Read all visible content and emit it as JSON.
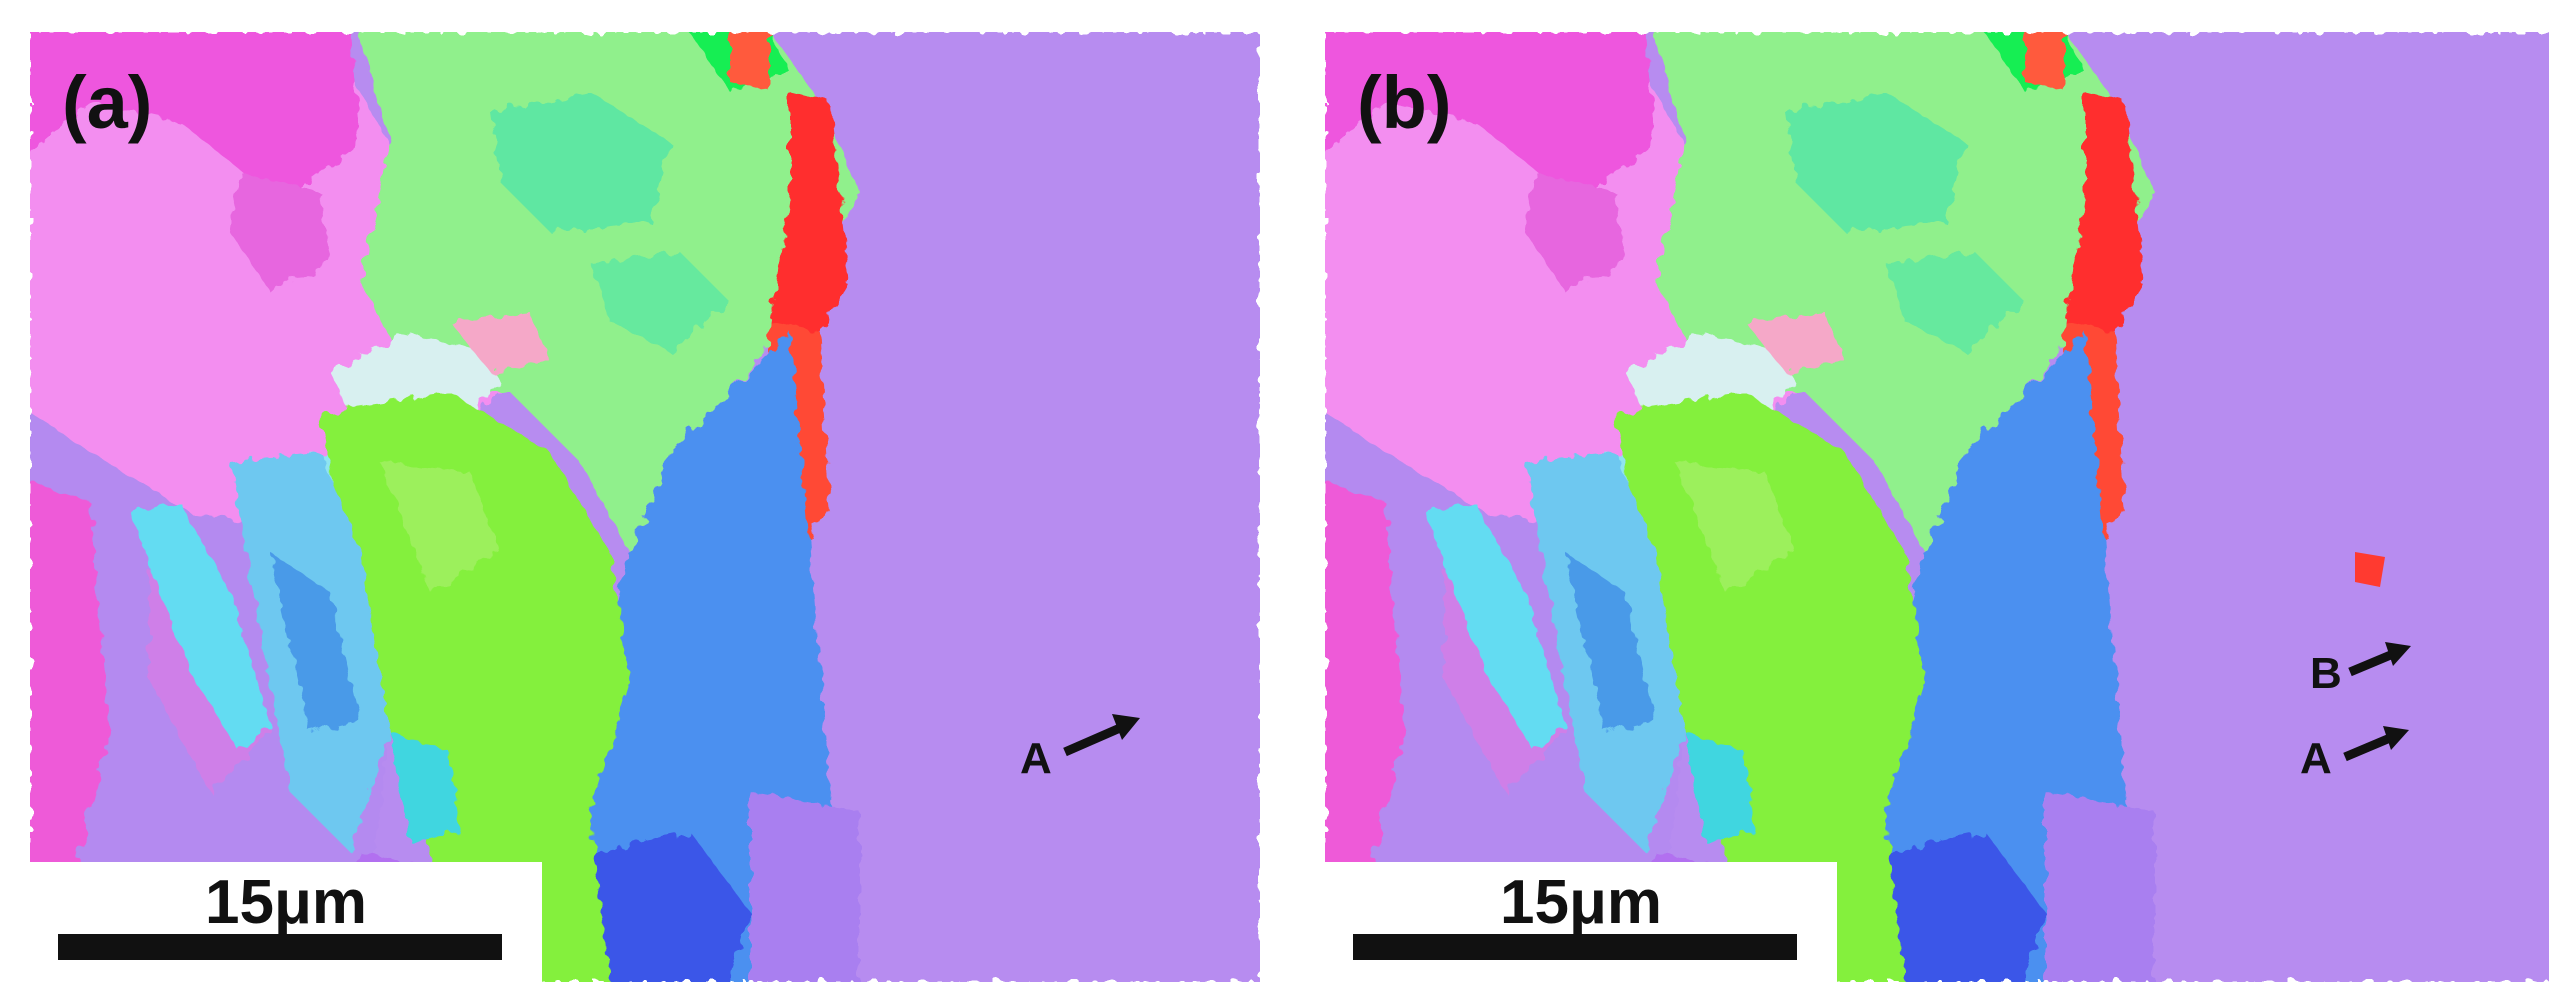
{
  "panels": {
    "a": {
      "label": "(a)",
      "scale_label": "15μm",
      "markers": [
        "A"
      ]
    },
    "b": {
      "label": "(b)",
      "scale_label": "15μm",
      "markers": [
        "B",
        "A"
      ]
    }
  },
  "colors": {
    "pink": "#f48ff0",
    "magenta": "#ee55e0",
    "green": "#8ef28a",
    "bright_green": "#86f23c",
    "blue": "#4d90f0",
    "cyan": "#5fd8f2",
    "violet": "#b88af2",
    "red": "#ff4436",
    "orange": "#ff7a38"
  }
}
